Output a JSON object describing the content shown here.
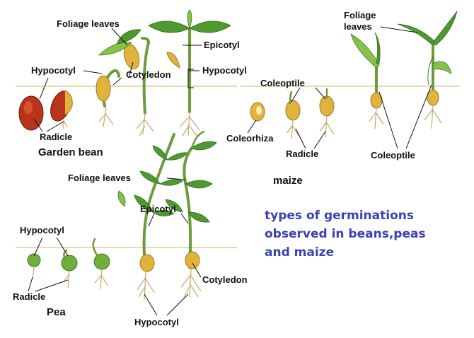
{
  "bean": {
    "foliage_leaves": "Foliage leaves",
    "epicotyl": "Epicotyl",
    "hypocotyl_left": "Hypocotyl",
    "cotyledon": "Cotyledon",
    "hypocotyl_right": "Hypocotyl",
    "radicle": "Radicle",
    "name": "Garden bean"
  },
  "maize": {
    "foliage_leaves_line1": "Foliage",
    "foliage_leaves_line2": "leaves",
    "coleoptile_top": "Coleoptile",
    "coleorhiza": "Coleorhiza",
    "radicle": "Radicle",
    "coleoptile_bottom": "Coleoptile",
    "name": "maize"
  },
  "pea": {
    "foliage_leaves": "Foliage leaves",
    "epicotyl": "Epicotyl",
    "hypocotyl_left": "Hypocotyl",
    "radicle": "Radicle",
    "cotyledon": "Cotyledon",
    "hypocotyl_bottom": "Hypocotyl",
    "name": "Pea"
  },
  "caption": {
    "line1": "types of germinations",
    "line2": "observed in beans,peas",
    "line3": "and maize"
  },
  "colors": {
    "caption": "#3b3fb8",
    "leaf": "#4f9a2e",
    "cotyledon": "#e0b43c",
    "seed": "#b8341c"
  }
}
